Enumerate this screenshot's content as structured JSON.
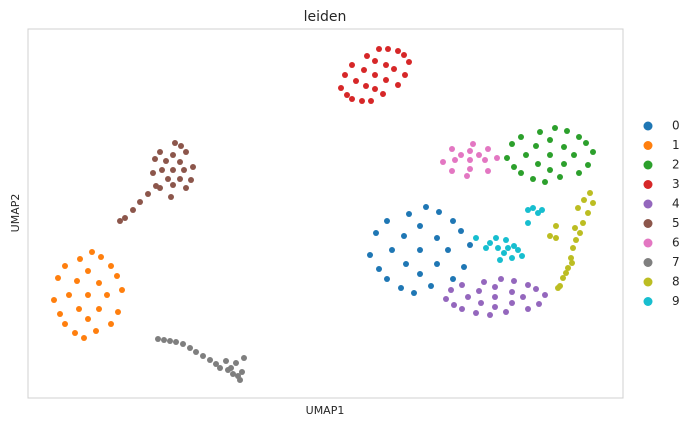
{
  "chart_data": {
    "type": "scatter",
    "title": "leiden",
    "x_label": "UMAP1",
    "y_label": "UMAP2",
    "xlim": [
      0,
      595
    ],
    "ylim": [
      0,
      369
    ],
    "series": [
      {
        "name": "0",
        "color": "#1f77b4",
        "x": [
          392,
          420,
          364,
          392,
          392,
          442,
          342,
          398,
          386,
          425,
          359,
          425,
          359,
          409,
          376,
          409,
          378,
          436,
          348,
          411,
          373,
          433,
          351,
          403,
          381
        ],
        "values": [
          148,
          148,
          148,
          172,
          124,
          153,
          143,
          191,
          105,
          177,
          177,
          119,
          119,
          160,
          162,
          134,
          134,
          131,
          165,
          186,
          110,
          167,
          129,
          112,
          184
        ]
      },
      {
        "name": "1",
        "color": "#ff7f0e",
        "x": [
          60,
          79,
          41,
          60,
          60,
          94,
          26,
          64,
          56,
          83,
          37,
          83,
          37,
          71,
          49,
          71,
          51,
          90,
          30,
          73,
          47,
          89,
          32,
          68,
          52
        ],
        "values": [
          103,
          103,
          103,
          127,
          79,
          108,
          98,
          146,
          60,
          132,
          132,
          74,
          74,
          115,
          117,
          89,
          89,
          86,
          120,
          141,
          65,
          122,
          84,
          67,
          139
        ]
      },
      {
        "name": "2",
        "color": "#2ca02c",
        "x": [
          522,
          546,
          498,
          522,
          522,
          565,
          479,
          527,
          517,
          551,
          493,
          551,
          493,
          536,
          508,
          536,
          510,
          560,
          484,
          539,
          505,
          558,
          486,
          532,
          512
        ],
        "values": [
          243,
          243,
          243,
          258,
          228,
          246,
          240,
          270,
          216,
          261,
          261,
          225,
          225,
          251,
          252,
          234,
          234,
          233,
          254,
          267,
          219,
          255,
          231,
          221,
          266
        ]
      },
      {
        "name": "3",
        "color": "#d62728",
        "x": [
          347,
          366,
          328,
          347,
          347,
          381,
          313,
          351,
          343,
          370,
          324,
          370,
          324,
          358,
          336,
          358,
          338,
          377,
          317,
          360,
          334,
          376,
          319,
          355,
          339
        ],
        "values": [
          323,
          329,
          317,
          337,
          309,
          336,
          310,
          349,
          297,
          347,
          333,
          313,
          299,
          333,
          328,
          318,
          312,
          323,
          323,
          349,
          297,
          343,
          303,
          304,
          342
        ]
      },
      {
        "name": "4",
        "color": "#9467bd",
        "x": [
          467,
          495,
          440,
          467,
          467,
          517,
          418,
          473,
          462,
          500,
          434,
          500,
          434,
          484,
          451,
          484,
          453,
          511,
          423,
          486,
          448,
          508,
          426,
          478,
          456
        ],
        "values": [
          101,
          101,
          101,
          111,
          91,
          103,
          99,
          119,
          83,
          113,
          113,
          89,
          89,
          106,
          107,
          95,
          95,
          94,
          108,
          117,
          85,
          109,
          93,
          86,
          116
        ]
      },
      {
        "name": "5",
        "color": "#8c564b",
        "x": [
          145,
          156,
          134,
          145,
          145,
          165,
          125,
          147,
          143,
          158,
          132,
          158,
          132,
          152,
          138,
          152,
          140,
          163,
          127,
          153,
          92,
          97,
          105,
          112,
          120,
          128
        ],
        "values": [
          228,
          228,
          228,
          243,
          213,
          231,
          225,
          255,
          201,
          246,
          246,
          210,
          210,
          236,
          237,
          219,
          219,
          218,
          239,
          252,
          177,
          180,
          188,
          196,
          204,
          212
        ]
      },
      {
        "name": "6",
        "color": "#e377c2",
        "x": [
          442,
          457,
          427,
          442,
          442,
          469,
          415,
          445,
          439,
          460,
          424,
          460,
          424,
          451,
          433
        ],
        "values": [
          238,
          238,
          238,
          247,
          229,
          240,
          236,
          254,
          222,
          249,
          249,
          227,
          227,
          243,
          243
        ]
      },
      {
        "name": "7",
        "color": "#7f7f7f",
        "x": [
          130,
          136,
          142,
          148,
          155,
          162,
          168,
          175,
          182,
          188,
          192,
          200,
          205,
          210,
          214,
          208,
          216,
          212,
          203,
          198
        ],
        "values": [
          59,
          58,
          57,
          56,
          54,
          50,
          46,
          42,
          38,
          34,
          30,
          28,
          24,
          22,
          26,
          35,
          40,
          18,
          30,
          37
        ]
      },
      {
        "name": "8",
        "color": "#bcbd22",
        "x": [
          562,
          565,
          560,
          555,
          552,
          548,
          545,
          543,
          540,
          535,
          532,
          528,
          522,
          528,
          550,
          556,
          544,
          538,
          547,
          530
        ],
        "values": [
          205,
          195,
          185,
          175,
          165,
          158,
          150,
          140,
          130,
          120,
          112,
          160,
          162,
          172,
          190,
          198,
          135,
          125,
          170,
          110
        ]
      },
      {
        "name": "9",
        "color": "#17becf",
        "x": [
          462,
          470,
          476,
          484,
          490,
          478,
          468,
          458,
          472,
          486,
          494,
          480,
          505,
          510,
          500,
          514,
          448,
          500
        ],
        "values": [
          155,
          150,
          145,
          140,
          148,
          158,
          160,
          150,
          138,
          152,
          142,
          150,
          190,
          185,
          188,
          188,
          160,
          175
        ]
      }
    ]
  }
}
